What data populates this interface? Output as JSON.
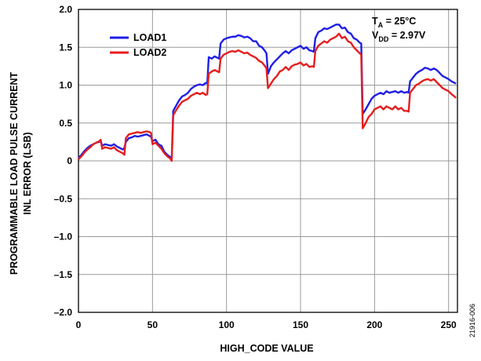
{
  "chart_data": {
    "type": "line",
    "title": "",
    "xlabel": "HIGH_CODE VALUE",
    "ylabel_lines": [
      "PROGRAMMABLE LOAD PULSE CURRENT",
      "INL ERROR (LSB)"
    ],
    "xlim": [
      0,
      256
    ],
    "ylim": [
      -2.0,
      2.0
    ],
    "x_ticks": [
      0,
      50,
      100,
      150,
      200,
      250
    ],
    "x_tick_labels": [
      "0",
      "50",
      "100",
      "150",
      "200",
      "250"
    ],
    "y_ticks": [
      2.0,
      1.5,
      1.0,
      0.5,
      0,
      -0.5,
      -1.0,
      -1.5,
      -2.0
    ],
    "y_tick_labels": [
      "2.0",
      "1.5",
      "1.0",
      "0.5",
      "0",
      "–0.5",
      "–1.0",
      "–1.5",
      "–2.0"
    ],
    "grid": true,
    "legend_position": "top-left",
    "colors": {
      "LOAD1": "#1f1fe6",
      "LOAD2": "#e61e1e",
      "grid": "#9a9a9a"
    },
    "annotation": {
      "line1_main": "T",
      "line1_sub": "A",
      "line1_rest": " = 25°C",
      "line2_main": "V",
      "line2_sub": "DD",
      "line2_rest": " = 2.97V"
    },
    "figure_id": "21916-006",
    "series": [
      {
        "name": "LOAD1",
        "color": "#1f1fe6",
        "points": [
          [
            0,
            0.04
          ],
          [
            2,
            0.08
          ],
          [
            4,
            0.13
          ],
          [
            6,
            0.17
          ],
          [
            8,
            0.2
          ],
          [
            10,
            0.22
          ],
          [
            12,
            0.24
          ],
          [
            14,
            0.25
          ],
          [
            15,
            0.27
          ],
          [
            16,
            0.2
          ],
          [
            18,
            0.22
          ],
          [
            20,
            0.21
          ],
          [
            22,
            0.2
          ],
          [
            24,
            0.22
          ],
          [
            26,
            0.19
          ],
          [
            28,
            0.17
          ],
          [
            30,
            0.15
          ],
          [
            31,
            0.17
          ],
          [
            32,
            0.25
          ],
          [
            34,
            0.3
          ],
          [
            36,
            0.31
          ],
          [
            38,
            0.33
          ],
          [
            40,
            0.32
          ],
          [
            42,
            0.33
          ],
          [
            44,
            0.34
          ],
          [
            46,
            0.35
          ],
          [
            48,
            0.33
          ],
          [
            49,
            0.32
          ],
          [
            50,
            0.26
          ],
          [
            52,
            0.28
          ],
          [
            54,
            0.22
          ],
          [
            56,
            0.2
          ],
          [
            58,
            0.12
          ],
          [
            60,
            0.08
          ],
          [
            62,
            0.05
          ],
          [
            63,
            0.02
          ],
          [
            64,
            0.66
          ],
          [
            66,
            0.73
          ],
          [
            68,
            0.8
          ],
          [
            70,
            0.85
          ],
          [
            72,
            0.87
          ],
          [
            74,
            0.9
          ],
          [
            76,
            0.95
          ],
          [
            78,
            0.98
          ],
          [
            80,
            1.0
          ],
          [
            82,
            1.01
          ],
          [
            84,
            1.0
          ],
          [
            86,
            1.03
          ],
          [
            87,
            1.02
          ],
          [
            88,
            1.37
          ],
          [
            90,
            1.35
          ],
          [
            92,
            1.38
          ],
          [
            94,
            1.36
          ],
          [
            95,
            1.35
          ],
          [
            96,
            1.55
          ],
          [
            98,
            1.6
          ],
          [
            100,
            1.62
          ],
          [
            102,
            1.63
          ],
          [
            104,
            1.64
          ],
          [
            106,
            1.64
          ],
          [
            108,
            1.66
          ],
          [
            110,
            1.65
          ],
          [
            112,
            1.63
          ],
          [
            114,
            1.64
          ],
          [
            116,
            1.62
          ],
          [
            118,
            1.58
          ],
          [
            120,
            1.58
          ],
          [
            122,
            1.52
          ],
          [
            124,
            1.5
          ],
          [
            126,
            1.45
          ],
          [
            127,
            1.42
          ],
          [
            128,
            1.15
          ],
          [
            130,
            1.25
          ],
          [
            132,
            1.3
          ],
          [
            134,
            1.34
          ],
          [
            136,
            1.38
          ],
          [
            138,
            1.42
          ],
          [
            140,
            1.45
          ],
          [
            142,
            1.42
          ],
          [
            144,
            1.46
          ],
          [
            146,
            1.48
          ],
          [
            148,
            1.5
          ],
          [
            150,
            1.52
          ],
          [
            152,
            1.48
          ],
          [
            154,
            1.5
          ],
          [
            156,
            1.46
          ],
          [
            158,
            1.45
          ],
          [
            159,
            1.44
          ],
          [
            160,
            1.62
          ],
          [
            162,
            1.7
          ],
          [
            164,
            1.72
          ],
          [
            166,
            1.75
          ],
          [
            168,
            1.74
          ],
          [
            170,
            1.76
          ],
          [
            172,
            1.78
          ],
          [
            174,
            1.8
          ],
          [
            176,
            1.8
          ],
          [
            178,
            1.75
          ],
          [
            180,
            1.76
          ],
          [
            182,
            1.7
          ],
          [
            184,
            1.68
          ],
          [
            186,
            1.62
          ],
          [
            188,
            1.6
          ],
          [
            190,
            1.56
          ],
          [
            191,
            1.55
          ],
          [
            192,
            0.62
          ],
          [
            194,
            0.68
          ],
          [
            196,
            0.75
          ],
          [
            198,
            0.82
          ],
          [
            200,
            0.86
          ],
          [
            202,
            0.88
          ],
          [
            204,
            0.9
          ],
          [
            206,
            0.88
          ],
          [
            208,
            0.92
          ],
          [
            210,
            0.9
          ],
          [
            212,
            0.91
          ],
          [
            214,
            0.92
          ],
          [
            216,
            0.9
          ],
          [
            218,
            0.92
          ],
          [
            220,
            0.9
          ],
          [
            222,
            0.91
          ],
          [
            223,
            0.9
          ],
          [
            224,
            1.05
          ],
          [
            226,
            1.1
          ],
          [
            228,
            1.15
          ],
          [
            230,
            1.18
          ],
          [
            232,
            1.2
          ],
          [
            234,
            1.23
          ],
          [
            236,
            1.22
          ],
          [
            238,
            1.2
          ],
          [
            240,
            1.22
          ],
          [
            242,
            1.2
          ],
          [
            244,
            1.16
          ],
          [
            246,
            1.12
          ],
          [
            248,
            1.1
          ],
          [
            250,
            1.08
          ],
          [
            252,
            1.05
          ],
          [
            254,
            1.03
          ],
          [
            255,
            1.02
          ]
        ]
      },
      {
        "name": "LOAD2",
        "color": "#e61e1e",
        "points": [
          [
            0,
            0.02
          ],
          [
            2,
            0.06
          ],
          [
            4,
            0.11
          ],
          [
            6,
            0.15
          ],
          [
            8,
            0.18
          ],
          [
            10,
            0.22
          ],
          [
            12,
            0.24
          ],
          [
            14,
            0.26
          ],
          [
            15,
            0.28
          ],
          [
            16,
            0.16
          ],
          [
            18,
            0.18
          ],
          [
            20,
            0.17
          ],
          [
            22,
            0.16
          ],
          [
            24,
            0.18
          ],
          [
            26,
            0.14
          ],
          [
            28,
            0.12
          ],
          [
            30,
            0.1
          ],
          [
            31,
            0.08
          ],
          [
            32,
            0.3
          ],
          [
            34,
            0.35
          ],
          [
            36,
            0.36
          ],
          [
            38,
            0.37
          ],
          [
            40,
            0.38
          ],
          [
            42,
            0.37
          ],
          [
            44,
            0.38
          ],
          [
            46,
            0.39
          ],
          [
            48,
            0.38
          ],
          [
            49,
            0.37
          ],
          [
            50,
            0.22
          ],
          [
            52,
            0.24
          ],
          [
            54,
            0.2
          ],
          [
            56,
            0.16
          ],
          [
            58,
            0.1
          ],
          [
            60,
            0.06
          ],
          [
            62,
            0.03
          ],
          [
            63,
            0.0
          ],
          [
            64,
            0.6
          ],
          [
            66,
            0.67
          ],
          [
            68,
            0.73
          ],
          [
            70,
            0.78
          ],
          [
            72,
            0.8
          ],
          [
            74,
            0.82
          ],
          [
            76,
            0.86
          ],
          [
            78,
            0.88
          ],
          [
            80,
            0.9
          ],
          [
            82,
            0.88
          ],
          [
            84,
            0.9
          ],
          [
            86,
            0.87
          ],
          [
            87,
            0.88
          ],
          [
            88,
            1.15
          ],
          [
            90,
            1.18
          ],
          [
            92,
            1.2
          ],
          [
            94,
            1.18
          ],
          [
            95,
            1.17
          ],
          [
            96,
            1.35
          ],
          [
            98,
            1.4
          ],
          [
            100,
            1.42
          ],
          [
            102,
            1.44
          ],
          [
            104,
            1.45
          ],
          [
            106,
            1.44
          ],
          [
            108,
            1.46
          ],
          [
            110,
            1.44
          ],
          [
            112,
            1.42
          ],
          [
            114,
            1.43
          ],
          [
            116,
            1.4
          ],
          [
            118,
            1.38
          ],
          [
            120,
            1.36
          ],
          [
            122,
            1.32
          ],
          [
            124,
            1.3
          ],
          [
            126,
            1.25
          ],
          [
            127,
            1.22
          ],
          [
            128,
            0.96
          ],
          [
            130,
            1.02
          ],
          [
            132,
            1.08
          ],
          [
            134,
            1.12
          ],
          [
            136,
            1.18
          ],
          [
            138,
            1.2
          ],
          [
            140,
            1.24
          ],
          [
            142,
            1.2
          ],
          [
            144,
            1.25
          ],
          [
            146,
            1.27
          ],
          [
            148,
            1.28
          ],
          [
            150,
            1.3
          ],
          [
            152,
            1.26
          ],
          [
            154,
            1.28
          ],
          [
            156,
            1.24
          ],
          [
            158,
            1.25
          ],
          [
            159,
            1.24
          ],
          [
            160,
            1.45
          ],
          [
            162,
            1.52
          ],
          [
            164,
            1.55
          ],
          [
            166,
            1.58
          ],
          [
            168,
            1.56
          ],
          [
            170,
            1.6
          ],
          [
            172,
            1.62
          ],
          [
            174,
            1.64
          ],
          [
            176,
            1.68
          ],
          [
            178,
            1.62
          ],
          [
            180,
            1.64
          ],
          [
            182,
            1.58
          ],
          [
            184,
            1.56
          ],
          [
            186,
            1.5
          ],
          [
            188,
            1.46
          ],
          [
            190,
            1.42
          ],
          [
            191,
            1.4
          ],
          [
            192,
            0.43
          ],
          [
            194,
            0.5
          ],
          [
            196,
            0.58
          ],
          [
            198,
            0.62
          ],
          [
            200,
            0.68
          ],
          [
            202,
            0.7
          ],
          [
            204,
            0.72
          ],
          [
            206,
            0.68
          ],
          [
            208,
            0.72
          ],
          [
            210,
            0.7
          ],
          [
            212,
            0.68
          ],
          [
            214,
            0.72
          ],
          [
            216,
            0.68
          ],
          [
            218,
            0.7
          ],
          [
            220,
            0.66
          ],
          [
            222,
            0.66
          ],
          [
            223,
            0.65
          ],
          [
            224,
            0.9
          ],
          [
            226,
            0.95
          ],
          [
            228,
            1.0
          ],
          [
            230,
            1.02
          ],
          [
            232,
            1.05
          ],
          [
            234,
            1.07
          ],
          [
            236,
            1.08
          ],
          [
            238,
            1.06
          ],
          [
            240,
            1.08
          ],
          [
            242,
            1.04
          ],
          [
            244,
            1.0
          ],
          [
            246,
            0.96
          ],
          [
            248,
            0.94
          ],
          [
            250,
            0.92
          ],
          [
            252,
            0.88
          ],
          [
            254,
            0.85
          ],
          [
            255,
            0.83
          ]
        ]
      }
    ]
  }
}
